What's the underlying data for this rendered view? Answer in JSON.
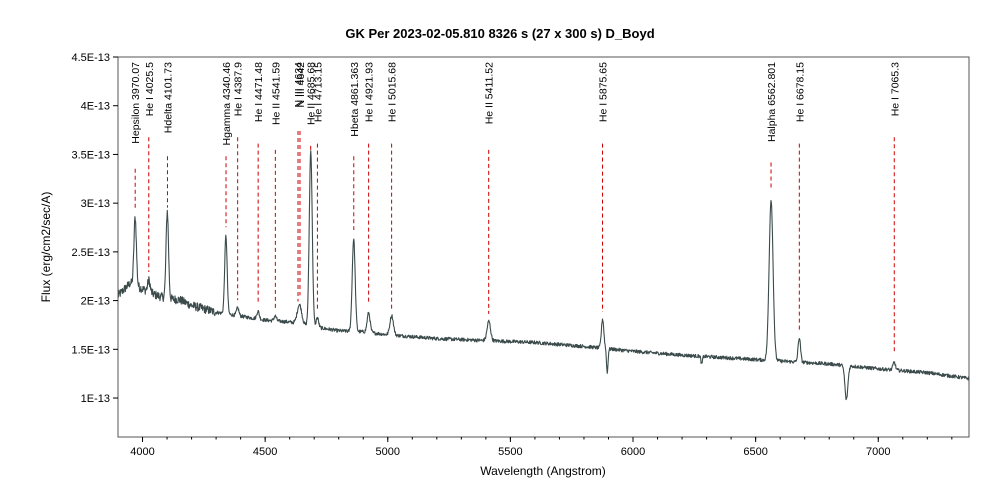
{
  "chart_data": {
    "type": "line",
    "title": "GK Per   2023-02-05.810   8326 s (27 x 300 s)   D_Boyd",
    "xlabel": "Wavelength (Angstrom)",
    "ylabel": "Flux (erg/cm2/sec/A)",
    "xlim": [
      3900,
      7370
    ],
    "ylim": [
      6e-14,
      4.5e-13
    ],
    "x_ticks": [
      4000,
      4500,
      5000,
      5500,
      6000,
      6500,
      7000
    ],
    "x_tick_labels": [
      "4000",
      "4500",
      "5000",
      "5500",
      "6000",
      "6500",
      "7000"
    ],
    "y_ticks": [
      1e-13,
      1.5e-13,
      2e-13,
      2.5e-13,
      3e-13,
      3.5e-13,
      4e-13,
      4.5e-13
    ],
    "y_tick_labels": [
      "1E-13",
      "1.5E-13",
      "2E-13",
      "2.5E-13",
      "3E-13",
      "3.5E-13",
      "4E-13",
      "4.5E-13"
    ],
    "grid": false,
    "series_color": "#3b4a4a",
    "marker_color": "#cc0000",
    "continuum": [
      [
        3900,
        2.05
      ],
      [
        3950,
        2.18
      ],
      [
        4000,
        2.12
      ],
      [
        4050,
        2.06
      ],
      [
        4100,
        2.02
      ],
      [
        4150,
        2.01
      ],
      [
        4200,
        1.95
      ],
      [
        4300,
        1.88
      ],
      [
        4400,
        1.84
      ],
      [
        4500,
        1.8
      ],
      [
        4600,
        1.78
      ],
      [
        4700,
        1.73
      ],
      [
        4800,
        1.69
      ],
      [
        4900,
        1.68
      ],
      [
        5000,
        1.65
      ],
      [
        5200,
        1.61
      ],
      [
        5400,
        1.59
      ],
      [
        5600,
        1.57
      ],
      [
        5800,
        1.53
      ],
      [
        6000,
        1.48
      ],
      [
        6200,
        1.44
      ],
      [
        6400,
        1.41
      ],
      [
        6600,
        1.38
      ],
      [
        6800,
        1.35
      ],
      [
        7000,
        1.3
      ],
      [
        7200,
        1.26
      ],
      [
        7370,
        1.2
      ]
    ],
    "features": [
      {
        "c": 3970,
        "amp": 0.7,
        "w": 5
      },
      {
        "c": 4026,
        "amp": 0.12,
        "w": 5
      },
      {
        "c": 4101,
        "amp": 0.9,
        "w": 5
      },
      {
        "c": 4340,
        "amp": 0.8,
        "w": 5
      },
      {
        "c": 4388,
        "amp": 0.08,
        "w": 5
      },
      {
        "c": 4471,
        "amp": 0.08,
        "w": 5
      },
      {
        "c": 4541,
        "amp": 0.05,
        "w": 5
      },
      {
        "c": 4640,
        "amp": 0.2,
        "w": 9
      },
      {
        "c": 4686,
        "amp": 1.8,
        "w": 6
      },
      {
        "c": 4713,
        "amp": 0.1,
        "w": 5
      },
      {
        "c": 4861,
        "amp": 0.95,
        "w": 6
      },
      {
        "c": 4922,
        "amp": 0.2,
        "w": 6
      },
      {
        "c": 5016,
        "amp": 0.2,
        "w": 7
      },
      {
        "c": 5412,
        "amp": 0.2,
        "w": 7
      },
      {
        "c": 5876,
        "amp": 0.3,
        "w": 5
      },
      {
        "c": 5895,
        "amp": -0.25,
        "w": 3
      },
      {
        "c": 6280,
        "amp": -0.08,
        "w": 3
      },
      {
        "c": 6563,
        "amp": 1.65,
        "w": 8
      },
      {
        "c": 6678,
        "amp": 0.25,
        "w": 5
      },
      {
        "c": 6870,
        "amp": -0.35,
        "w": 6
      },
      {
        "c": 7065,
        "amp": 0.08,
        "w": 5
      }
    ],
    "line_markers": [
      {
        "label": "Hepsilon 3970.07",
        "x": 3970.07
      },
      {
        "label": "He I 4025.5",
        "x": 4025.5
      },
      {
        "label": "Hdelta 4101.73",
        "x": 4101.73
      },
      {
        "label": "Hgamma 4340.46",
        "x": 4340.46
      },
      {
        "label": "He I 4387.9",
        "x": 4387.9
      },
      {
        "label": "He I 4471.48",
        "x": 4471.48
      },
      {
        "label": "He II 4541.59",
        "x": 4541.59
      },
      {
        "label": "N III 4634",
        "x": 4634
      },
      {
        "label": "N III 4642",
        "x": 4642
      },
      {
        "label": "He II 4685.68",
        "x": 4685.68
      },
      {
        "label": "He I 4713.15",
        "x": 4713.15
      },
      {
        "label": "Hbeta 4861.363",
        "x": 4861.363
      },
      {
        "label": "He I 4921.93",
        "x": 4921.93
      },
      {
        "label": "He I 5015.68",
        "x": 5015.68
      },
      {
        "label": "He II 5411.52",
        "x": 5411.52
      },
      {
        "label": "He I 5875.65",
        "x": 5875.65
      },
      {
        "label": "Halpha 6562.801",
        "x": 6562.801
      },
      {
        "label": "He I 6678.15",
        "x": 6678.15
      },
      {
        "label": "He I 7065.3",
        "x": 7065.3
      }
    ]
  }
}
